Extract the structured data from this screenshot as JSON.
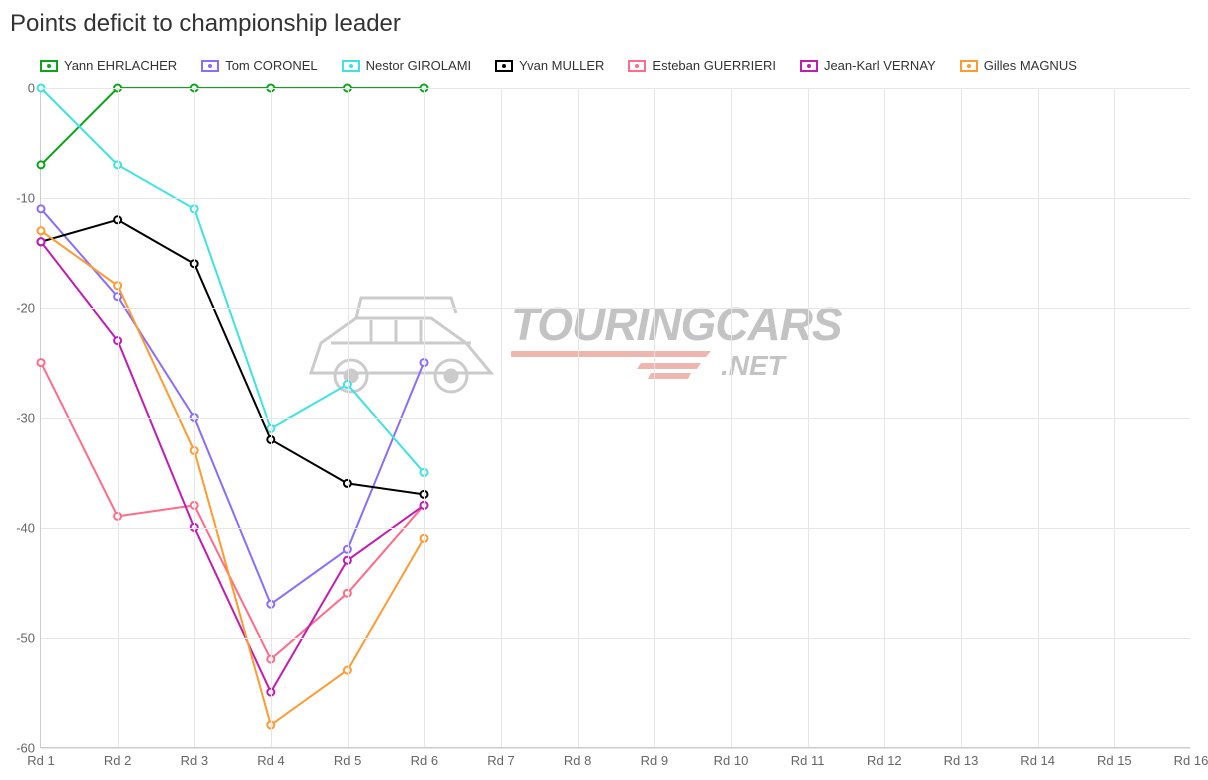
{
  "chart": {
    "title": "Points deficit to championship leader",
    "title_fontsize": 24,
    "title_color": "#333333",
    "background_color": "#ffffff",
    "grid_color": "#e6e6e6",
    "axis_color": "#cccccc",
    "label_color": "#666666",
    "label_fontsize": 13,
    "type": "line",
    "x_categories": [
      "Rd 1",
      "Rd 2",
      "Rd 3",
      "Rd 4",
      "Rd 5",
      "Rd 6",
      "Rd 7",
      "Rd 8",
      "Rd 9",
      "Rd 10",
      "Rd 11",
      "Rd 12",
      "Rd 13",
      "Rd 14",
      "Rd 15",
      "Rd 16"
    ],
    "ylim": [
      -60,
      0
    ],
    "ytick_step": 10,
    "line_width": 2,
    "marker_radius": 3.5,
    "series": [
      {
        "name": "Yann EHRLACHER",
        "color": "#0aa61a",
        "values": [
          -7,
          0,
          0,
          0,
          0,
          0
        ]
      },
      {
        "name": "Tom CORONEL",
        "color": "#8a6cff",
        "values": [
          -11,
          -19,
          -30,
          -47,
          -42,
          -25
        ]
      },
      {
        "name": "Nestor GIROLAMI",
        "color": "#3de3e3",
        "values": [
          0,
          -7,
          -11,
          -31,
          -27,
          -35
        ]
      },
      {
        "name": "Yvan MULLER",
        "color": "#000000",
        "values": [
          -14,
          -12,
          -16,
          -32,
          -36,
          -37
        ]
      },
      {
        "name": "Esteban GUERRIERI",
        "color": "#ff6b88",
        "values": [
          -25,
          -39,
          -38,
          -52,
          -46,
          -38
        ]
      },
      {
        "name": "Jean-Karl VERNAY",
        "color": "#c21bb3",
        "values": [
          -14,
          -23,
          -40,
          -55,
          -43,
          -38
        ]
      },
      {
        "name": "Gilles MAGNUS",
        "color": "#ff9a2e",
        "values": [
          -13,
          -18,
          -33,
          -58,
          -53,
          -41
        ]
      }
    ]
  },
  "watermark": {
    "text_main": "TOURINGCARS",
    "text_sub": ".NET",
    "text_color": "#6b6b6b",
    "stripe_color": "#d84a3a",
    "car_color": "#808080"
  }
}
